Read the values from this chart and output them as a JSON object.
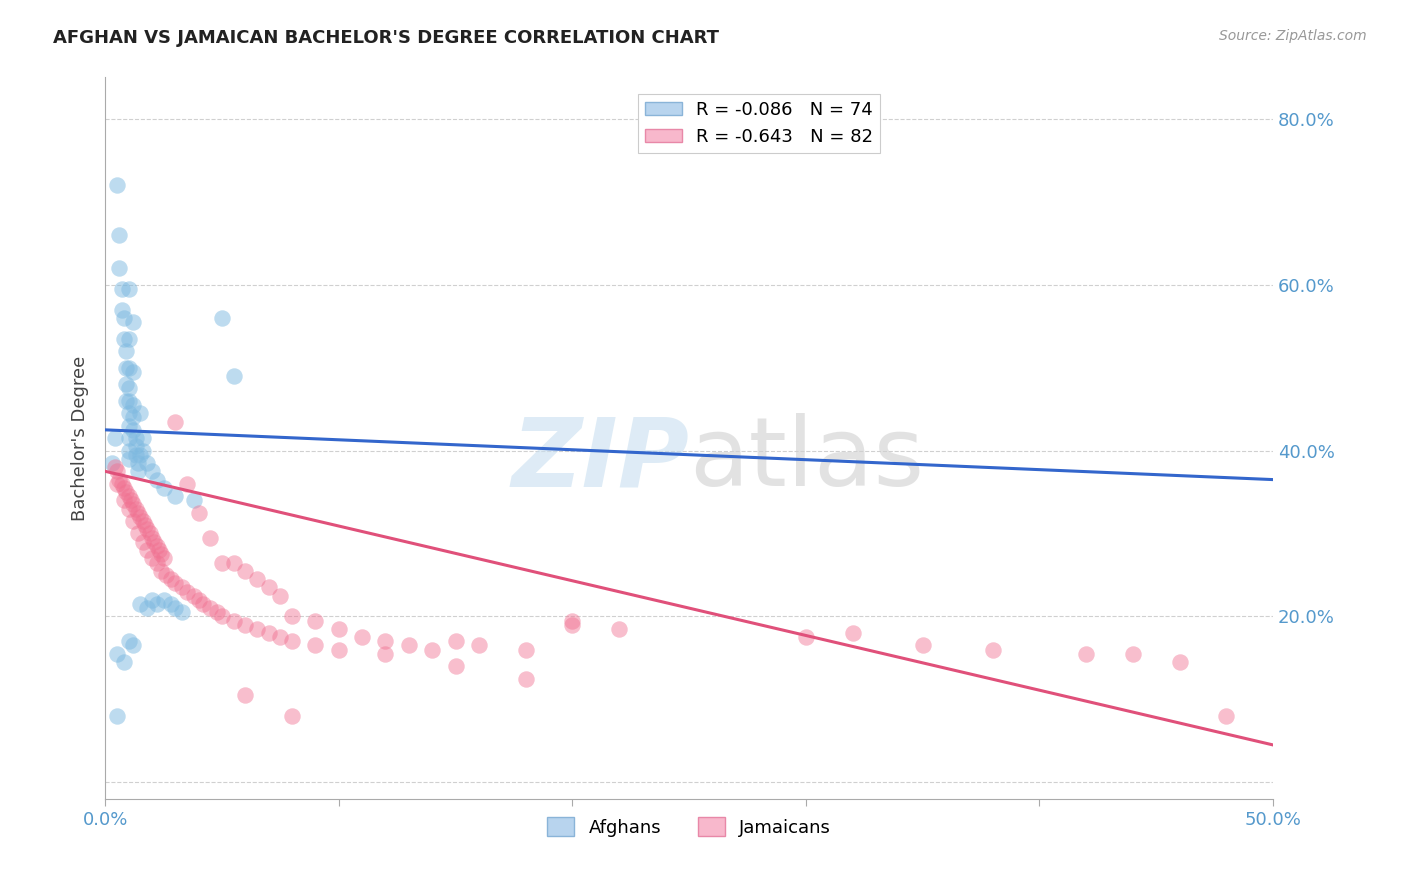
{
  "title": "AFGHAN VS JAMAICAN BACHELOR'S DEGREE CORRELATION CHART",
  "source": "Source: ZipAtlas.com",
  "ylabel": "Bachelor's Degree",
  "xlim": [
    0.0,
    0.5
  ],
  "ylim": [
    -0.02,
    0.85
  ],
  "yticks": [
    0.0,
    0.2,
    0.4,
    0.6,
    0.8
  ],
  "ytick_labels": [
    "",
    "20.0%",
    "40.0%",
    "60.0%",
    "80.0%"
  ],
  "xticks": [
    0.0,
    0.1,
    0.2,
    0.3,
    0.4,
    0.5
  ],
  "xtick_labels": [
    "0.0%",
    "",
    "",
    "",
    "",
    "50.0%"
  ],
  "afghan_color": "#7db9e0",
  "jamaican_color": "#f07090",
  "afghan_trendline_color": "#3366cc",
  "jamaican_trendline_color": "#e0507a",
  "watermark_zip_color": "#c8dff0",
  "watermark_atlas_color": "#d0d0d0",
  "afghans_scatter": [
    [
      0.003,
      0.385
    ],
    [
      0.004,
      0.415
    ],
    [
      0.005,
      0.72
    ],
    [
      0.006,
      0.66
    ],
    [
      0.006,
      0.62
    ],
    [
      0.007,
      0.595
    ],
    [
      0.007,
      0.57
    ],
    [
      0.008,
      0.56
    ],
    [
      0.008,
      0.535
    ],
    [
      0.009,
      0.52
    ],
    [
      0.009,
      0.5
    ],
    [
      0.009,
      0.48
    ],
    [
      0.009,
      0.46
    ],
    [
      0.01,
      0.595
    ],
    [
      0.01,
      0.535
    ],
    [
      0.01,
      0.5
    ],
    [
      0.01,
      0.475
    ],
    [
      0.01,
      0.46
    ],
    [
      0.01,
      0.445
    ],
    [
      0.01,
      0.43
    ],
    [
      0.01,
      0.415
    ],
    [
      0.01,
      0.4
    ],
    [
      0.01,
      0.39
    ],
    [
      0.012,
      0.555
    ],
    [
      0.012,
      0.495
    ],
    [
      0.012,
      0.455
    ],
    [
      0.012,
      0.44
    ],
    [
      0.012,
      0.425
    ],
    [
      0.013,
      0.415
    ],
    [
      0.013,
      0.405
    ],
    [
      0.013,
      0.395
    ],
    [
      0.014,
      0.385
    ],
    [
      0.014,
      0.375
    ],
    [
      0.015,
      0.445
    ],
    [
      0.015,
      0.395
    ],
    [
      0.016,
      0.415
    ],
    [
      0.016,
      0.4
    ],
    [
      0.018,
      0.385
    ],
    [
      0.02,
      0.375
    ],
    [
      0.022,
      0.365
    ],
    [
      0.025,
      0.355
    ],
    [
      0.03,
      0.345
    ],
    [
      0.038,
      0.34
    ],
    [
      0.05,
      0.56
    ],
    [
      0.055,
      0.49
    ],
    [
      0.005,
      0.155
    ],
    [
      0.008,
      0.145
    ],
    [
      0.01,
      0.17
    ],
    [
      0.012,
      0.165
    ],
    [
      0.015,
      0.215
    ],
    [
      0.018,
      0.21
    ],
    [
      0.02,
      0.22
    ],
    [
      0.022,
      0.215
    ],
    [
      0.025,
      0.22
    ],
    [
      0.028,
      0.215
    ],
    [
      0.03,
      0.21
    ],
    [
      0.033,
      0.205
    ],
    [
      0.005,
      0.08
    ]
  ],
  "jamaicans_scatter": [
    [
      0.004,
      0.38
    ],
    [
      0.005,
      0.375
    ],
    [
      0.006,
      0.365
    ],
    [
      0.007,
      0.36
    ],
    [
      0.008,
      0.355
    ],
    [
      0.009,
      0.35
    ],
    [
      0.01,
      0.345
    ],
    [
      0.011,
      0.34
    ],
    [
      0.012,
      0.335
    ],
    [
      0.013,
      0.33
    ],
    [
      0.014,
      0.325
    ],
    [
      0.015,
      0.32
    ],
    [
      0.016,
      0.315
    ],
    [
      0.017,
      0.31
    ],
    [
      0.018,
      0.305
    ],
    [
      0.019,
      0.3
    ],
    [
      0.02,
      0.295
    ],
    [
      0.021,
      0.29
    ],
    [
      0.022,
      0.285
    ],
    [
      0.023,
      0.28
    ],
    [
      0.024,
      0.275
    ],
    [
      0.025,
      0.27
    ],
    [
      0.005,
      0.36
    ],
    [
      0.008,
      0.34
    ],
    [
      0.01,
      0.33
    ],
    [
      0.012,
      0.315
    ],
    [
      0.014,
      0.3
    ],
    [
      0.016,
      0.29
    ],
    [
      0.018,
      0.28
    ],
    [
      0.02,
      0.27
    ],
    [
      0.022,
      0.265
    ],
    [
      0.024,
      0.255
    ],
    [
      0.026,
      0.25
    ],
    [
      0.028,
      0.245
    ],
    [
      0.03,
      0.24
    ],
    [
      0.033,
      0.235
    ],
    [
      0.035,
      0.23
    ],
    [
      0.038,
      0.225
    ],
    [
      0.04,
      0.22
    ],
    [
      0.042,
      0.215
    ],
    [
      0.045,
      0.21
    ],
    [
      0.048,
      0.205
    ],
    [
      0.05,
      0.2
    ],
    [
      0.055,
      0.195
    ],
    [
      0.06,
      0.19
    ],
    [
      0.065,
      0.185
    ],
    [
      0.07,
      0.18
    ],
    [
      0.075,
      0.175
    ],
    [
      0.08,
      0.17
    ],
    [
      0.09,
      0.165
    ],
    [
      0.1,
      0.16
    ],
    [
      0.03,
      0.435
    ],
    [
      0.035,
      0.36
    ],
    [
      0.04,
      0.325
    ],
    [
      0.045,
      0.295
    ],
    [
      0.05,
      0.265
    ],
    [
      0.055,
      0.265
    ],
    [
      0.06,
      0.255
    ],
    [
      0.065,
      0.245
    ],
    [
      0.07,
      0.235
    ],
    [
      0.075,
      0.225
    ],
    [
      0.08,
      0.2
    ],
    [
      0.09,
      0.195
    ],
    [
      0.1,
      0.185
    ],
    [
      0.11,
      0.175
    ],
    [
      0.12,
      0.17
    ],
    [
      0.13,
      0.165
    ],
    [
      0.14,
      0.16
    ],
    [
      0.15,
      0.17
    ],
    [
      0.16,
      0.165
    ],
    [
      0.18,
      0.16
    ],
    [
      0.2,
      0.19
    ],
    [
      0.22,
      0.185
    ],
    [
      0.06,
      0.105
    ],
    [
      0.08,
      0.08
    ],
    [
      0.12,
      0.155
    ],
    [
      0.15,
      0.14
    ],
    [
      0.18,
      0.125
    ],
    [
      0.2,
      0.195
    ],
    [
      0.3,
      0.175
    ],
    [
      0.32,
      0.18
    ],
    [
      0.35,
      0.165
    ],
    [
      0.38,
      0.16
    ],
    [
      0.42,
      0.155
    ],
    [
      0.44,
      0.155
    ],
    [
      0.46,
      0.145
    ],
    [
      0.48,
      0.08
    ]
  ],
  "afghan_trend_x": [
    0.0,
    0.5
  ],
  "afghan_trend_y": [
    0.425,
    0.365
  ],
  "jamaican_trend_x": [
    0.0,
    0.5
  ],
  "jamaican_trend_y": [
    0.375,
    0.045
  ],
  "background_color": "#ffffff",
  "grid_color": "#d0d0d0",
  "title_color": "#222222",
  "tick_color": "#5599cc"
}
